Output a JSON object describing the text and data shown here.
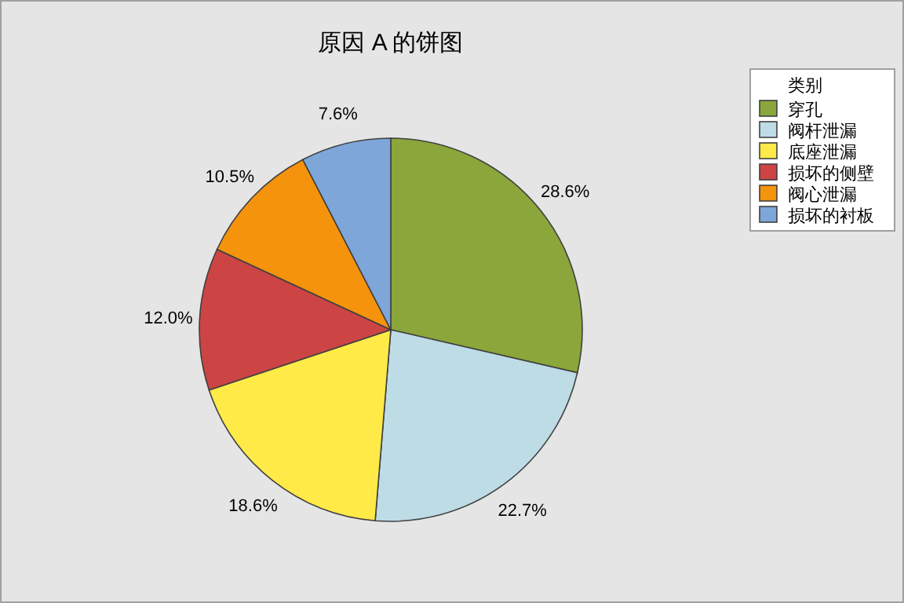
{
  "chart_data": {
    "type": "pie",
    "title": "原因 A 的饼图",
    "legend_title": "类别",
    "categories": [
      "穿孔",
      "阀杆泄漏",
      "底座泄漏",
      "损坏的侧壁",
      "阀心泄漏",
      "损坏的衬板"
    ],
    "values": [
      28.6,
      22.7,
      18.6,
      12.0,
      10.5,
      7.6
    ],
    "value_labels": [
      "28.6%",
      "22.7%",
      "18.6%",
      "12.0%",
      "10.5%",
      "7.6%"
    ],
    "colors": [
      "#8ba63a",
      "#bedce6",
      "#ffea47",
      "#cc4444",
      "#f5930c",
      "#7ea6d9"
    ],
    "legend": "top right"
  }
}
